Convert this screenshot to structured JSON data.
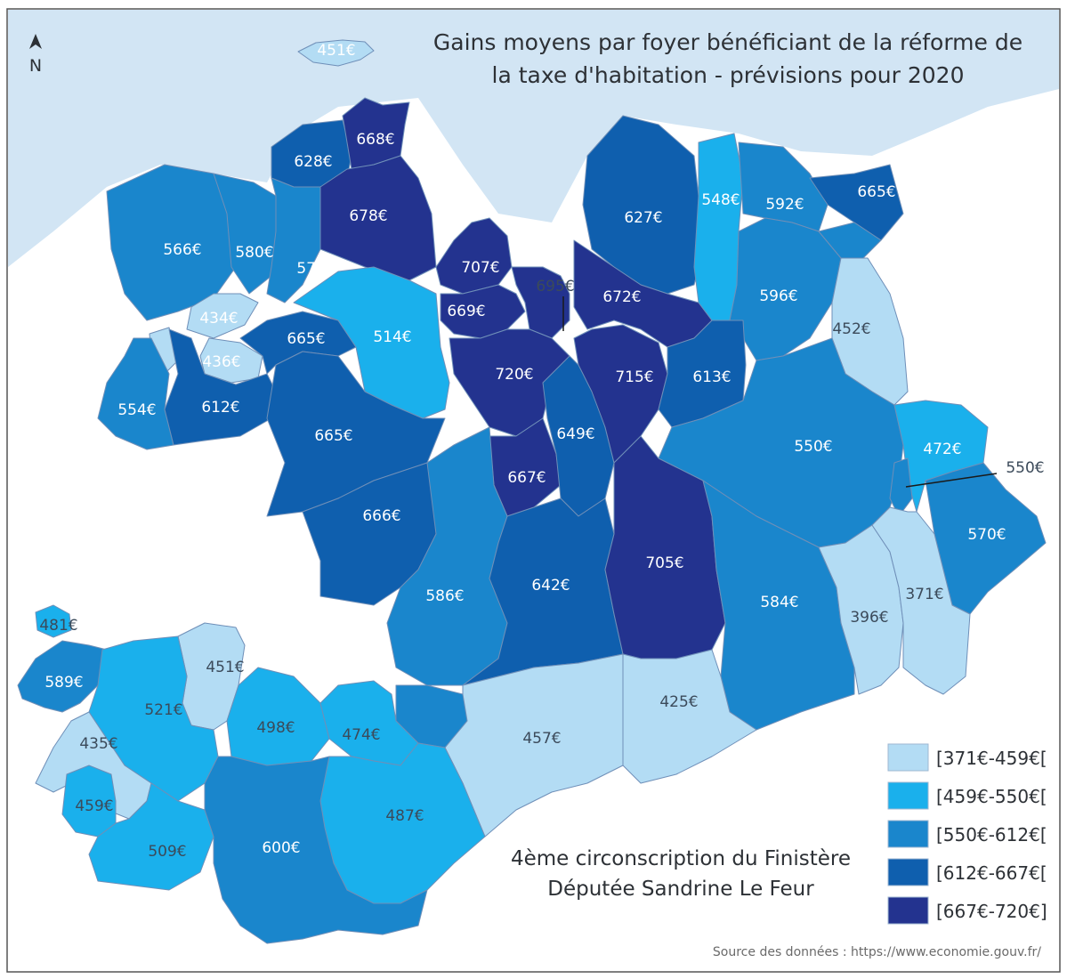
{
  "title": {
    "line1": "Gains moyens par foyer bénéficiant de la réforme de",
    "line2": "la taxe d'habitation - prévisions pour 2020"
  },
  "subtitle": {
    "line1": "4ème circonscription du Finistère",
    "line2": "Députée Sandrine Le Feur"
  },
  "source": "Source des données : https://www.economie.gouv.fr/",
  "north_label": "N",
  "icons": {
    "north": "north-arrow-icon"
  },
  "colors": {
    "sea": "#d2e5f4",
    "land_outside": "#ffffff",
    "class_1": "#b3dcf4",
    "class_2": "#1ab0ec",
    "class_3": "#1a86cc",
    "class_4": "#0f5fae",
    "class_5": "#23338f"
  },
  "legend": [
    {
      "label": "[371€-459€[",
      "color": "#b3dcf4"
    },
    {
      "label": "[459€-550€[",
      "color": "#1ab0ec"
    },
    {
      "label": "[550€-612€[",
      "color": "#1a86cc"
    },
    {
      "label": "[612€-667€[",
      "color": "#0f5fae"
    },
    {
      "label": "[667€-720€]",
      "color": "#23338f"
    }
  ],
  "communes": [
    {
      "value": 451,
      "label": "451€",
      "class": 1
    },
    {
      "value": 668,
      "label": "668€",
      "class": 5
    },
    {
      "value": 628,
      "label": "628€",
      "class": 4
    },
    {
      "value": 678,
      "label": "678€",
      "class": 5
    },
    {
      "value": 566,
      "label": "566€",
      "class": 3
    },
    {
      "value": 580,
      "label": "580€",
      "class": 3
    },
    {
      "value": 572,
      "label": "572€",
      "class": 3
    },
    {
      "value": 434,
      "label": "434€",
      "class": 1
    },
    {
      "value": 436,
      "label": "436€",
      "class": 1
    },
    {
      "value": 554,
      "label": "554€",
      "class": 3
    },
    {
      "value": 612,
      "label": "612€",
      "class": 4
    },
    {
      "value": 665,
      "label": "665€",
      "class": 4
    },
    {
      "value": 514,
      "label": "514€",
      "class": 2
    },
    {
      "value": 665,
      "label": "665€",
      "class": 4
    },
    {
      "value": 666,
      "label": "666€",
      "class": 4
    },
    {
      "value": 707,
      "label": "707€",
      "class": 5
    },
    {
      "value": 669,
      "label": "669€",
      "class": 5
    },
    {
      "value": 695,
      "label": "695€",
      "class": 5
    },
    {
      "value": 720,
      "label": "720€",
      "class": 5
    },
    {
      "value": 667,
      "label": "667€",
      "class": 5
    },
    {
      "value": 649,
      "label": "649€",
      "class": 4
    },
    {
      "value": 627,
      "label": "627€",
      "class": 4
    },
    {
      "value": 672,
      "label": "672€",
      "class": 5
    },
    {
      "value": 715,
      "label": "715€",
      "class": 5
    },
    {
      "value": 548,
      "label": "548€",
      "class": 2
    },
    {
      "value": 592,
      "label": "592€",
      "class": 3
    },
    {
      "value": 665,
      "label": "665€",
      "class": 4
    },
    {
      "value": 596,
      "label": "596€",
      "class": 3
    },
    {
      "value": 613,
      "label": "613€",
      "class": 4
    },
    {
      "value": 452,
      "label": "452€",
      "class": 1
    },
    {
      "value": 550,
      "label": "550€",
      "class": 3
    },
    {
      "value": 472,
      "label": "472€",
      "class": 2
    },
    {
      "value": 550,
      "label": "550€",
      "class": 3
    },
    {
      "value": 570,
      "label": "570€",
      "class": 3
    },
    {
      "value": 586,
      "label": "586€",
      "class": 3
    },
    {
      "value": 642,
      "label": "642€",
      "class": 4
    },
    {
      "value": 705,
      "label": "705€",
      "class": 5
    },
    {
      "value": 584,
      "label": "584€",
      "class": 3
    },
    {
      "value": 396,
      "label": "396€",
      "class": 1
    },
    {
      "value": 371,
      "label": "371€",
      "class": 1
    },
    {
      "value": 425,
      "label": "425€",
      "class": 1
    },
    {
      "value": 457,
      "label": "457€",
      "class": 1
    },
    {
      "value": 481,
      "label": "481€",
      "class": 2
    },
    {
      "value": 589,
      "label": "589€",
      "class": 3
    },
    {
      "value": 451,
      "label": "451€",
      "class": 1
    },
    {
      "value": 521,
      "label": "521€",
      "class": 2
    },
    {
      "value": 435,
      "label": "435€",
      "class": 1
    },
    {
      "value": 498,
      "label": "498€",
      "class": 2
    },
    {
      "value": 474,
      "label": "474€",
      "class": 2
    },
    {
      "value": 459,
      "label": "459€",
      "class": 2
    },
    {
      "value": 509,
      "label": "509€",
      "class": 2
    },
    {
      "value": 487,
      "label": "487€",
      "class": 2
    },
    {
      "value": 600,
      "label": "600€",
      "class": 3
    }
  ]
}
